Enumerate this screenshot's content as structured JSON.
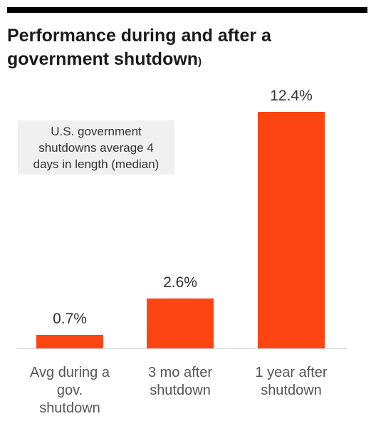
{
  "title_lines": [
    "Performance during and after a",
    "government shutdown"
  ],
  "title_suffix": ")",
  "note_lines": [
    "U.S. government",
    "shutdowns average 4",
    "days in length (median)"
  ],
  "colors": {
    "bar": "#fc4512",
    "text": "#333333",
    "title": "#1a1a1a"
  },
  "chart_data": {
    "type": "bar",
    "title": "Performance during and after a government shutdown",
    "categories": [
      "Avg during a gov. shutdown",
      "3 mo after shutdown",
      "1 year after shutdown"
    ],
    "category_lines": [
      [
        "Avg during a",
        "gov.",
        "shutdown"
      ],
      [
        "3 mo after",
        "shutdown"
      ],
      [
        "1 year after",
        "shutdown"
      ]
    ],
    "values": [
      0.7,
      2.6,
      12.4
    ],
    "value_labels": [
      "0.7%",
      "2.6%",
      "12.4%"
    ],
    "unit": "%",
    "ylim": [
      0,
      12.4
    ],
    "grid": false,
    "annotations": [
      "U.S. government shutdowns average 4 days in length (median)"
    ]
  }
}
